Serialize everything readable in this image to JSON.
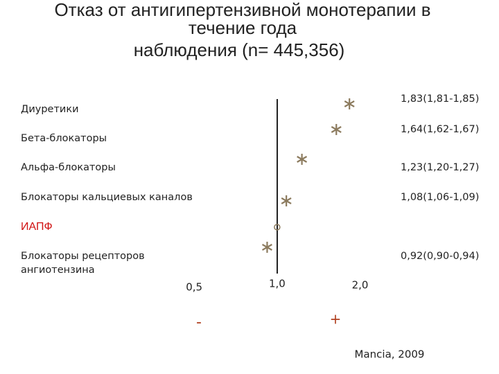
{
  "chart_data": {
    "type": "forest",
    "title_lines": [
      "Отказ от антигипертензивной монотерапии в",
      "течение года",
      "наблюдения (n= 445,356)"
    ],
    "categories": [
      "Диуретики",
      "Бета-блокаторы",
      "Альфа-блокаторы",
      "Блокаторы  кальциевых каналов",
      "ИАПФ",
      "Блокаторы рецепторов ангиотензина"
    ],
    "category_colors": [
      "#222222",
      "#222222",
      "#222222",
      "#222222",
      "#d01010",
      "#222222"
    ],
    "values": [
      1.83,
      1.64,
      1.23,
      1.08,
      1,
      0.92
    ],
    "value_labels": [
      "1,83(1,81-1,85)",
      "1,64(1,62-1,67)",
      "1,23(1,20-1,27)",
      "1,08(1,06-1,09)",
      null,
      "0,92(0,90-0,94)"
    ],
    "markers": [
      "star",
      "star",
      "star",
      "star",
      "circle",
      "star"
    ],
    "color": "#8c7b5e",
    "xscale": "log",
    "xlim": [
      0.45,
      2.2
    ],
    "xticks": [
      {
        "value": 0.5,
        "label": "0,5"
      },
      {
        "value": 1,
        "label": "1,0"
      },
      {
        "value": 2,
        "label": "2,0"
      }
    ],
    "annotations": [
      "-",
      "+"
    ],
    "source": "Mancia, 2009"
  }
}
